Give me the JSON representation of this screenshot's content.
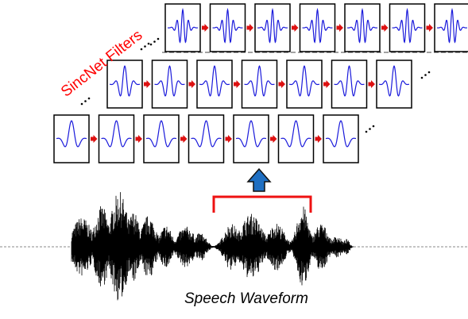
{
  "labels": {
    "filters": "SincNet Filters",
    "waveform": "Speech Waveform"
  },
  "colors": {
    "filter_wave": "#1a1adb",
    "connector_arrow": "#dd1111",
    "bracket": "#ee1111",
    "up_arrow": "#1f6fc2",
    "up_arrow_outline": "#111111",
    "waveform": "#000000",
    "label_red": "#ff0000"
  },
  "filter_rows": [
    {
      "id": "front",
      "boxes": 7,
      "center_frequency": 2.0,
      "continues": true
    },
    {
      "id": "middle",
      "boxes": 7,
      "center_frequency": 3.2,
      "continues": true
    },
    {
      "id": "back",
      "boxes": 7,
      "center_frequency": 5.2,
      "continues": true
    }
  ],
  "icons": [
    "ellipsis-icon",
    "right-arrow-icon",
    "up-arrow-icon",
    "bracket-icon"
  ]
}
